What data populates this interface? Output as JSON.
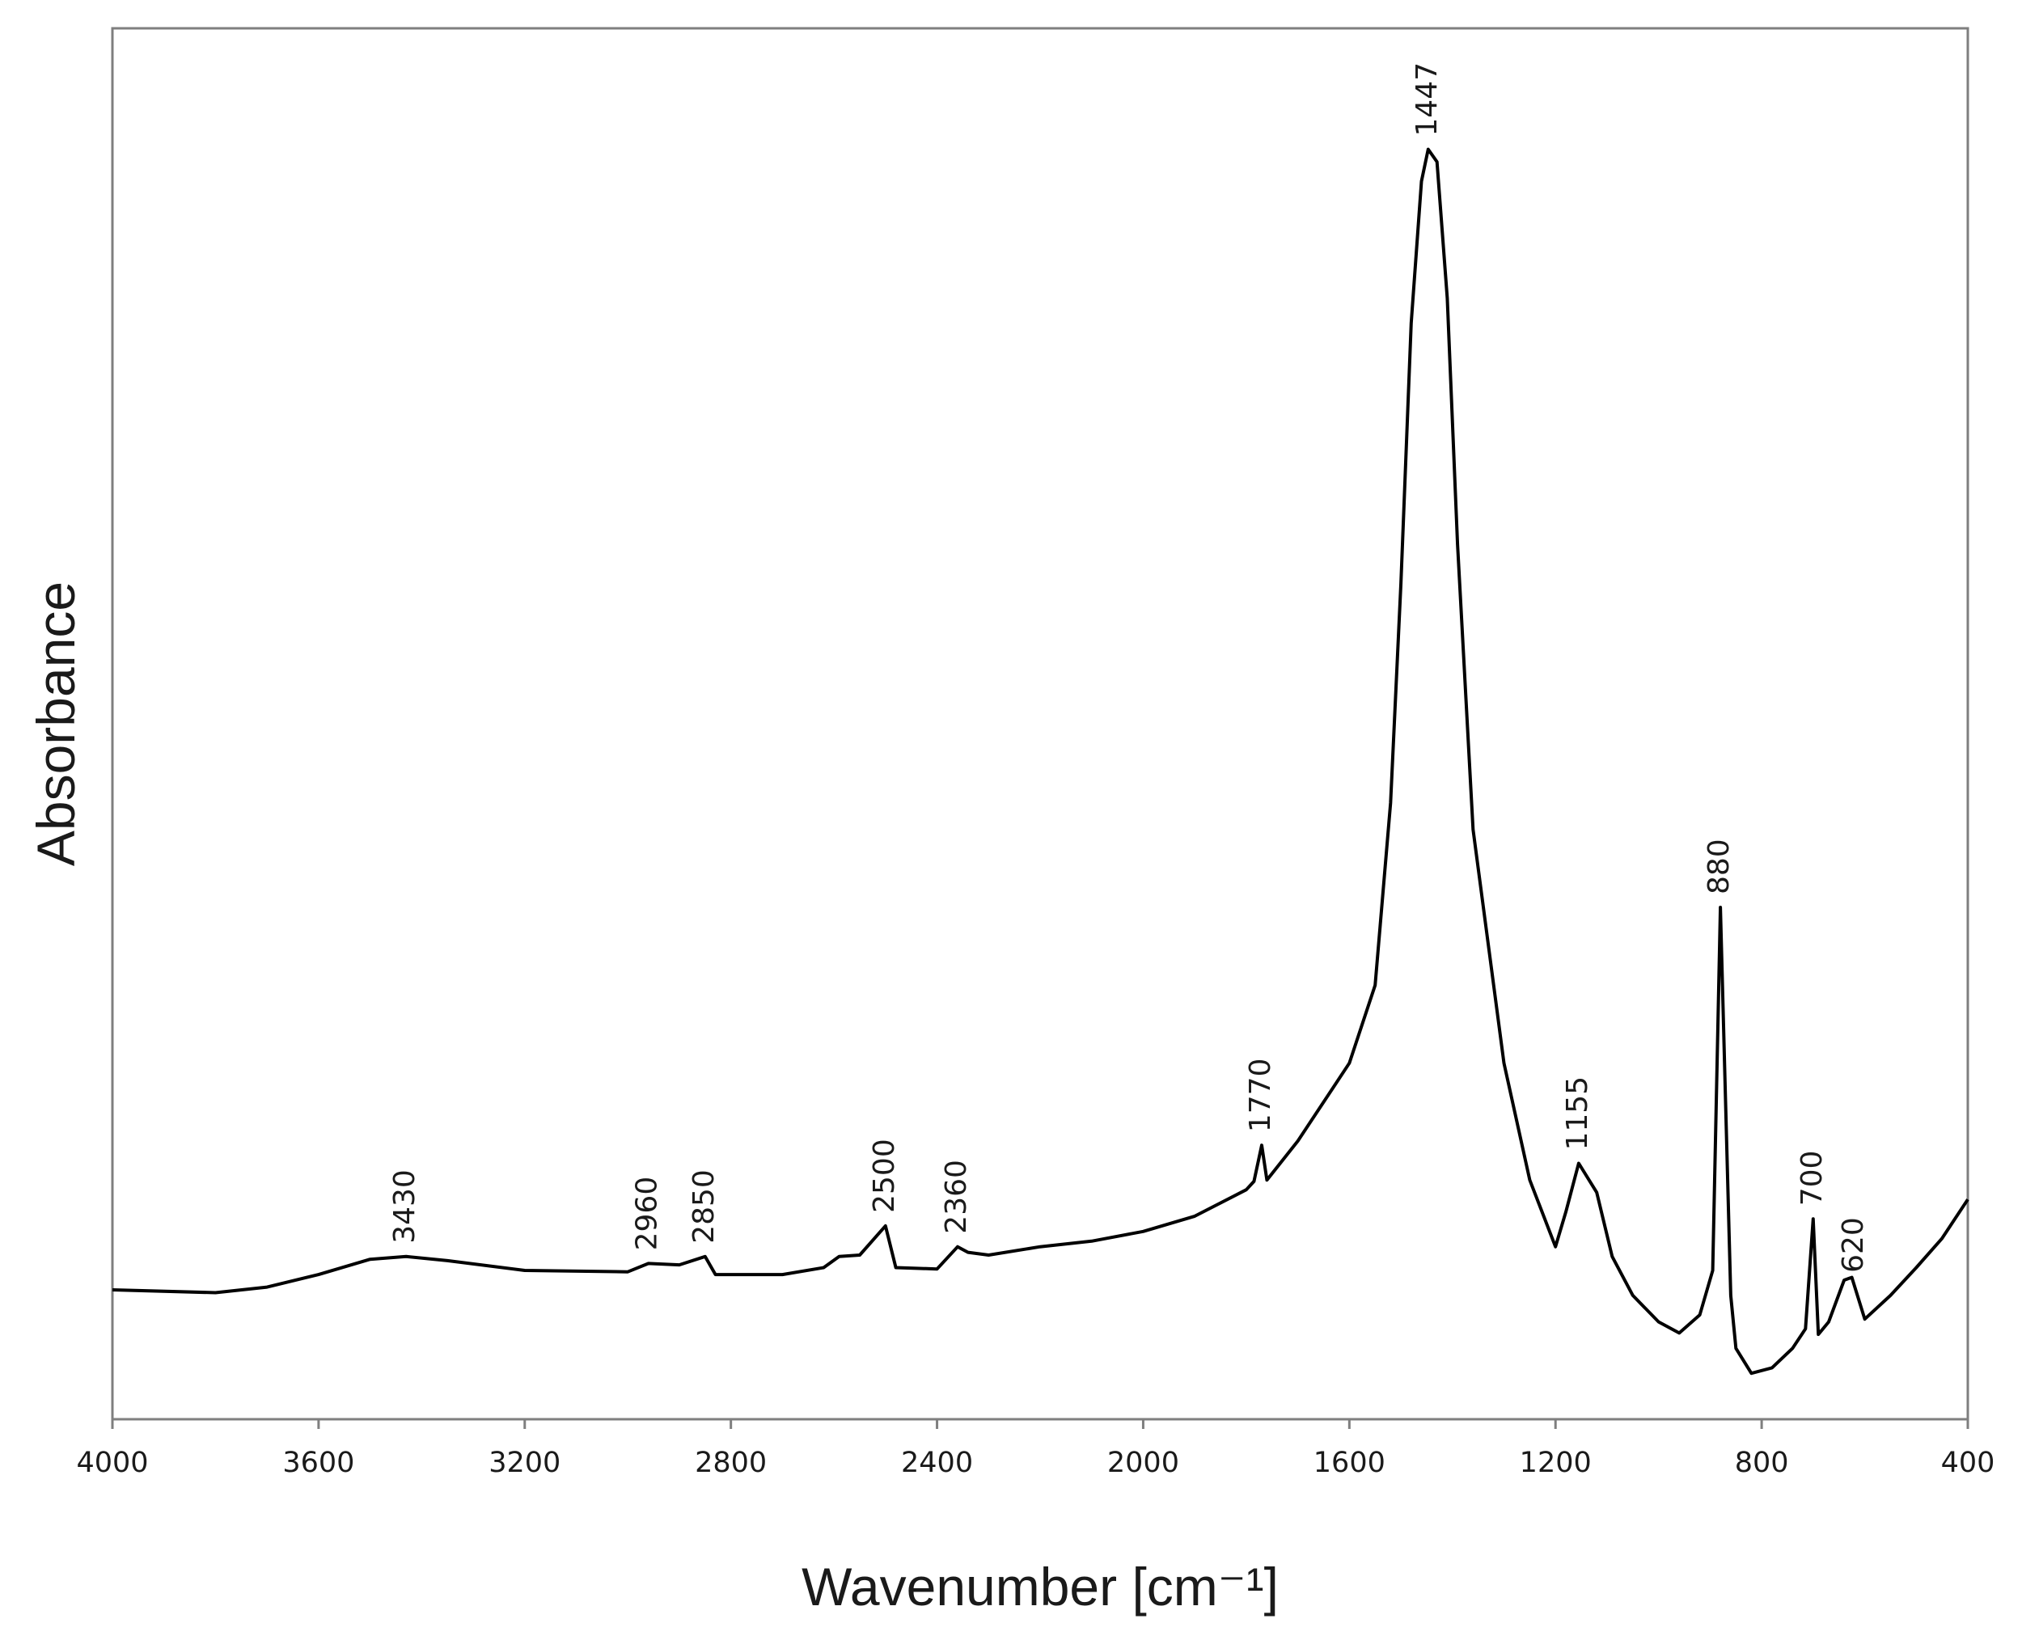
{
  "chart_data": {
    "type": "line",
    "xlabel": "Wavenumber [cm⁻¹]",
    "ylabel": "Absorbance",
    "xlim": [
      4000,
      400
    ],
    "xticks": [
      4000,
      3600,
      3200,
      2800,
      2400,
      2000,
      1600,
      1200,
      800,
      400
    ],
    "ylim": [
      0,
      1
    ],
    "grid": false,
    "series": [
      {
        "color": "#000000",
        "x": [
          4000,
          3800,
          3700,
          3600,
          3500,
          3430,
          3350,
          3200,
          3000,
          2960,
          2900,
          2850,
          2830,
          2700,
          2620,
          2590,
          2550,
          2500,
          2480,
          2400,
          2360,
          2340,
          2300,
          2200,
          2100,
          2000,
          1900,
          1800,
          1785,
          1770,
          1760,
          1700,
          1600,
          1550,
          1520,
          1500,
          1480,
          1460,
          1447,
          1430,
          1410,
          1390,
          1360,
          1300,
          1250,
          1200,
          1180,
          1155,
          1120,
          1090,
          1050,
          1000,
          960,
          920,
          895,
          880,
          870,
          860,
          850,
          820,
          780,
          740,
          715,
          700,
          690,
          670,
          640,
          625,
          600,
          550,
          500,
          450,
          400
        ],
        "values": [
          0.093,
          0.091,
          0.095,
          0.104,
          0.115,
          0.117,
          0.114,
          0.107,
          0.106,
          0.112,
          0.111,
          0.117,
          0.104,
          0.104,
          0.109,
          0.117,
          0.118,
          0.139,
          0.109,
          0.108,
          0.124,
          0.12,
          0.118,
          0.124,
          0.128,
          0.135,
          0.146,
          0.165,
          0.171,
          0.197,
          0.172,
          0.2,
          0.256,
          0.312,
          0.443,
          0.601,
          0.788,
          0.89,
          0.913,
          0.904,
          0.806,
          0.629,
          0.424,
          0.256,
          0.172,
          0.124,
          0.149,
          0.184,
          0.163,
          0.117,
          0.089,
          0.07,
          0.062,
          0.075,
          0.107,
          0.368,
          0.228,
          0.089,
          0.051,
          0.033,
          0.037,
          0.051,
          0.065,
          0.144,
          0.061,
          0.07,
          0.1,
          0.102,
          0.072,
          0.089,
          0.109,
          0.13,
          0.158
        ]
      }
    ],
    "annotations": [
      {
        "x": 3430,
        "label": "3430"
      },
      {
        "x": 2960,
        "label": "2960"
      },
      {
        "x": 2850,
        "label": "2850"
      },
      {
        "x": 2500,
        "label": "2500"
      },
      {
        "x": 2360,
        "label": "2360"
      },
      {
        "x": 1770,
        "label": "1770"
      },
      {
        "x": 1447,
        "label": "1447"
      },
      {
        "x": 1155,
        "label": "1155"
      },
      {
        "x": 880,
        "label": "880"
      },
      {
        "x": 700,
        "label": "700"
      },
      {
        "x": 620,
        "label": "620"
      }
    ]
  }
}
